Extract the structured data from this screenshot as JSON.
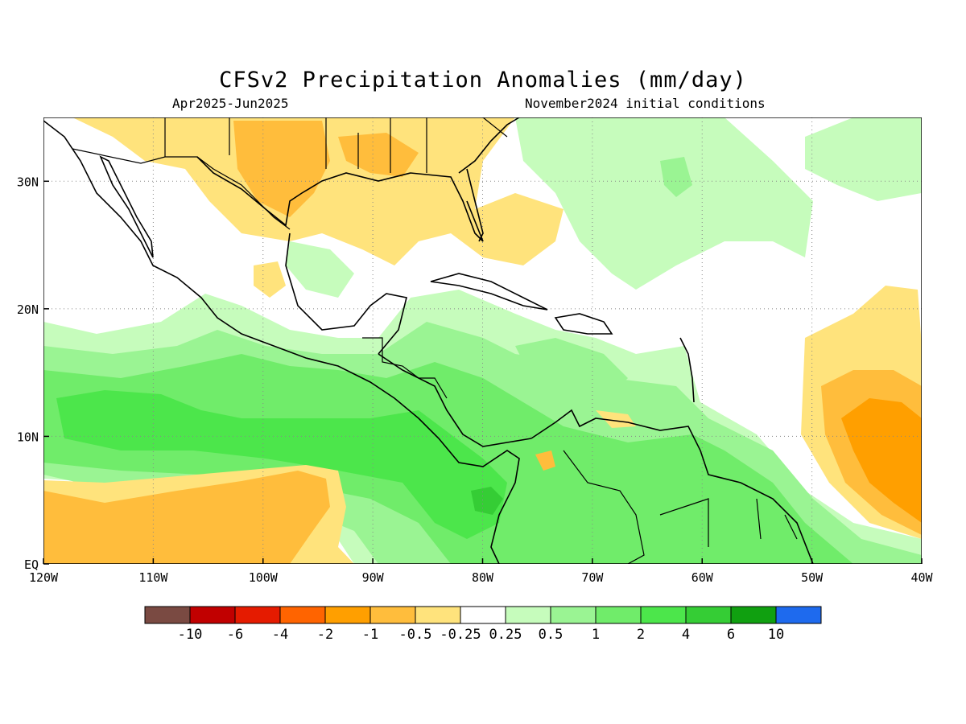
{
  "title": "CFSv2 Precipitation Anomalies (mm/day)",
  "subtitle_left": "Apr2025-Jun2025",
  "subtitle_right": "November2024 initial conditions",
  "map": {
    "lon_range": [
      -120,
      -40
    ],
    "lat_range": [
      0,
      35
    ],
    "lon_ticks": [
      {
        "value": -120,
        "label": "120W"
      },
      {
        "value": -110,
        "label": "110W"
      },
      {
        "value": -100,
        "label": "100W"
      },
      {
        "value": -90,
        "label": "90W"
      },
      {
        "value": -80,
        "label": "80W"
      },
      {
        "value": -70,
        "label": "70W"
      },
      {
        "value": -60,
        "label": "60W"
      },
      {
        "value": -50,
        "label": "50W"
      },
      {
        "value": -40,
        "label": "40W"
      }
    ],
    "lat_ticks": [
      {
        "value": 0,
        "label": "EQ"
      },
      {
        "value": 10,
        "label": "10N"
      },
      {
        "value": 20,
        "label": "20N"
      },
      {
        "value": 30,
        "label": "30N"
      }
    ],
    "grid": "dotted"
  },
  "colorbar": {
    "colors": [
      "#7a4a42",
      "#c10000",
      "#e51b00",
      "#ff6400",
      "#ff9f00",
      "#ffbd3c",
      "#ffe37c",
      "#ffffff",
      "#c6fcbc",
      "#9af493",
      "#70ec6a",
      "#4ce64b",
      "#35cd35",
      "#10a010",
      "#1e6aee"
    ],
    "labels": [
      "-10",
      "-6",
      "-4",
      "-2",
      "-1",
      "-0.5",
      "-0.25",
      "0.25",
      "0.5",
      "1",
      "2",
      "4",
      "6",
      "10"
    ]
  }
}
